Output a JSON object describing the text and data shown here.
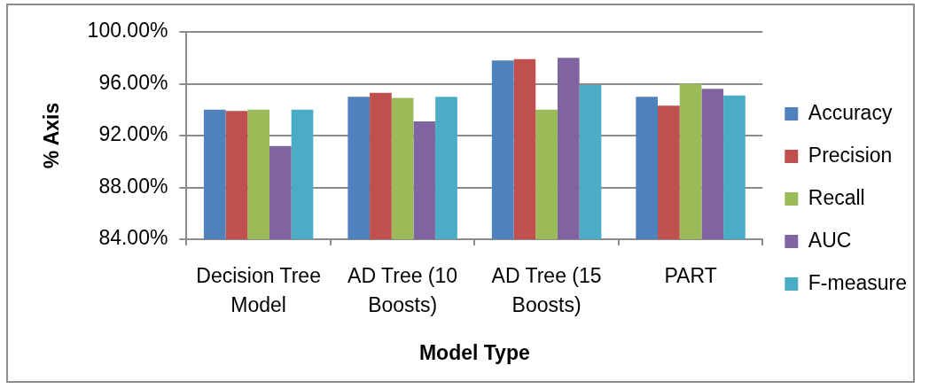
{
  "chart_data": {
    "type": "bar",
    "xlabel": "Model Type",
    "ylabel": "% Axis",
    "categories": [
      "Decision Tree Model",
      "AD Tree (10 Boosts)",
      "AD Tree (15 Boosts)",
      "PART"
    ],
    "series": [
      {
        "name": "Accuracy",
        "color": "#4f81bd",
        "values": [
          94.0,
          95.0,
          97.8,
          95.0
        ]
      },
      {
        "name": "Precision",
        "color": "#c0504d",
        "values": [
          93.9,
          95.3,
          97.9,
          94.3
        ]
      },
      {
        "name": "Recall",
        "color": "#9bbb59",
        "values": [
          94.0,
          94.9,
          94.0,
          96.0
        ]
      },
      {
        "name": "AUC",
        "color": "#8064a2",
        "values": [
          91.2,
          93.1,
          98.0,
          95.6
        ]
      },
      {
        "name": "F-measure",
        "color": "#4bacc6",
        "values": [
          94.0,
          95.0,
          95.9,
          95.1
        ]
      }
    ],
    "ylim": [
      84,
      100
    ],
    "yticks": [
      {
        "value": 84,
        "label": "84.00%"
      },
      {
        "value": 88,
        "label": "88.00%"
      },
      {
        "value": 92,
        "label": "92.00%"
      },
      {
        "value": 96,
        "label": "96.00%"
      },
      {
        "value": 100,
        "label": "100.00%"
      }
    ],
    "grid": "y",
    "legend": "right"
  }
}
